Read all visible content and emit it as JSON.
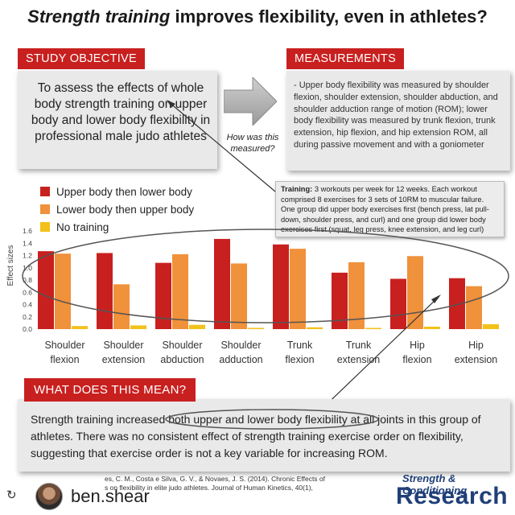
{
  "title": {
    "italic_part": "Strength training",
    "rest": " improves flexibility, even in athletes?"
  },
  "objective": {
    "label": "STUDY OBJECTIVE",
    "text": "To assess the effects of whole body strength training on upper body and lower body flexibility in professional male judo athletes"
  },
  "measurements": {
    "label": "MEASUREMENTS",
    "text": "- Upper body flexibility was measured by shoulder flexion, shoulder extension, shoulder abduction, and shoulder adduction range of motion (ROM); lower body flexibility was measured by trunk flexion, trunk extension, hip flexion, and hip extension ROM, all during passive movement and with a goniometer"
  },
  "question": "How was this measured?",
  "training": {
    "label": "Training:",
    "text": " 3 workouts per week for 12 weeks. Each workout comprised 8 exercises for 3 sets of 10RM to muscular failure. One group did upper body exercises first (bench press, lat pull-down, shoulder press, and curl) and one group did lower body exercises first (squat, leg press, knee extension, and leg curl)"
  },
  "meaning": {
    "label": "WHAT DOES THIS MEAN?",
    "text_before": "Strength training increased ",
    "text_highlight": "both upper and lower body flexibility",
    "text_after": " at all joints in this group of athletes. There was no consistent effect of strength training exercise order on flexibility, suggesting that exercise order is not a key variable for increasing ROM."
  },
  "citation": {
    "line1": "es, C. M., Costa e Silva, G. V., & Novaes, J. S. (2014). Chronic Effects of",
    "line2": "s on flexibility in elite judo athletes. Journal of Human Kinetics, 40(1),"
  },
  "footer": {
    "username": "ben.shear",
    "brand_line1": "Strength & Conditioning",
    "brand_line2": "Research"
  },
  "colors": {
    "red": "#c8201f",
    "orange": "#f0913b",
    "yellow": "#f2c11a",
    "grey_box": "#e9e9e9",
    "brand_blue": "#1f3f78"
  },
  "chart_data": {
    "type": "bar",
    "ylabel": "Effect sizes",
    "ylim": [
      0,
      1.6
    ],
    "yticks": [
      "0.0",
      "0.2",
      "0.4",
      "0.6",
      "0.8",
      "1.0",
      "1.2",
      "1.4",
      "1.6"
    ],
    "categories": [
      [
        "Shoulder",
        "flexion"
      ],
      [
        "Shoulder",
        "extension"
      ],
      [
        "Shoulder",
        "abduction"
      ],
      [
        "Shoulder",
        "adduction"
      ],
      [
        "Trunk",
        "flexion"
      ],
      [
        "Trunk",
        "extension"
      ],
      [
        "Hip",
        "flexion"
      ],
      [
        "Hip",
        "extension"
      ]
    ],
    "series": [
      {
        "name": "Upper body then lower body",
        "color": "#c8201f",
        "values": [
          1.27,
          1.24,
          1.08,
          1.47,
          1.38,
          0.92,
          0.82,
          0.83
        ]
      },
      {
        "name": "Lower body then upper body",
        "color": "#f0913b",
        "values": [
          1.23,
          0.73,
          1.22,
          1.07,
          1.31,
          1.09,
          1.19,
          0.7
        ]
      },
      {
        "name": "No training",
        "color": "#f2c11a",
        "values": [
          0.05,
          0.06,
          0.07,
          0.02,
          0.03,
          0.02,
          0.04,
          0.08
        ]
      }
    ],
    "legend_position": "top-left",
    "grid": false
  }
}
